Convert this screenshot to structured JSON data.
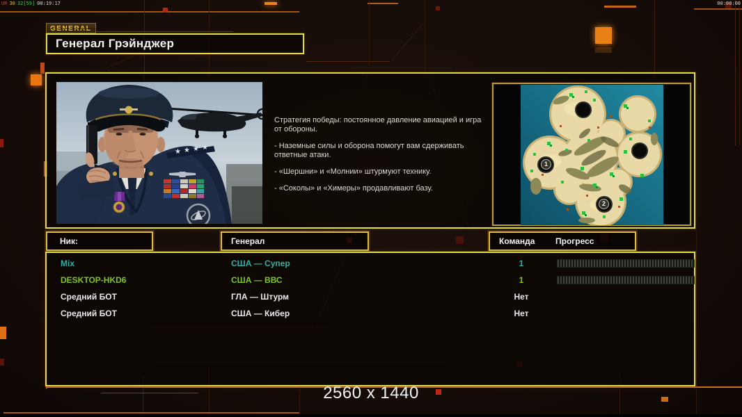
{
  "hud": {
    "left": {
      "p1": "UR",
      "p2": "30",
      "p3": "32[59]",
      "p4": "00:19:17"
    },
    "right_timer": "00:00:00"
  },
  "header": {
    "tab_label": "GENERAL",
    "title": "Генерал Грэйнджер"
  },
  "info": {
    "paragraphs": [
      "Стратегия победы: постоянное давление авиацией и игра от обороны.",
      "- Наземные силы и оборона помогут вам сдерживать ответные атаки.",
      "- «Шершни» и «Молнии» штурмуют технику.",
      "- «Соколы» и «Химеры» продавливают базу."
    ]
  },
  "map": {
    "badge1": "1",
    "badge2": "2"
  },
  "roster": {
    "headers": {
      "nick": "Ник:",
      "general": "Генерал",
      "team": "Команда",
      "progress": "Прогресс"
    },
    "rows": [
      {
        "nick": "Mix",
        "general": "США — Супер",
        "team": "1",
        "color": "#2fb0a6",
        "has_progress": true
      },
      {
        "nick": "DESKTOP-HKD6",
        "general": "США — ВВС",
        "team": "1",
        "color": "#7fc41f",
        "has_progress": true
      },
      {
        "nick": "Средний БОТ",
        "general": "ГЛА — Штурм",
        "team": "Нет",
        "color": "#e8e8e8",
        "has_progress": false
      },
      {
        "nick": "Средний БОТ",
        "general": "США — Кибер",
        "team": "Нет",
        "color": "#e8e8e8",
        "has_progress": false
      }
    ]
  },
  "footer": {
    "resolution_label": "2560 x 1440"
  },
  "colors": {
    "accent_yellow": "#dedc40",
    "accent_orange": "#e8821a",
    "alert_red": "#c22818",
    "teal": "#2fb0a6",
    "green": "#7fc41f"
  }
}
